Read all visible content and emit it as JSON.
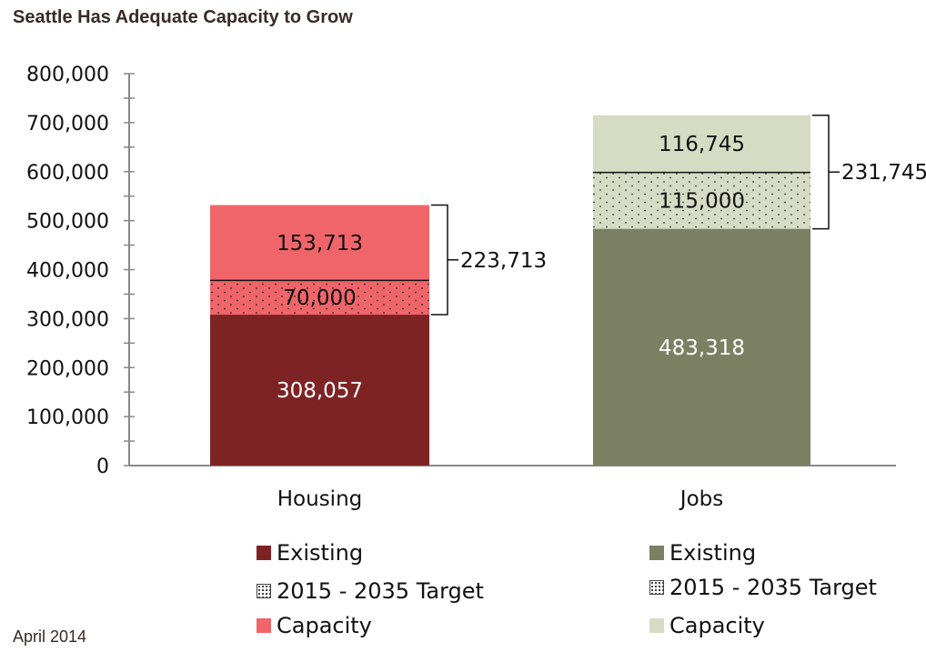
{
  "header": {
    "title": "Seattle Has Adequate Capacity to Grow"
  },
  "footer": {
    "date": "April 2014"
  },
  "colors": {
    "housing_existing": "#7e2324",
    "housing_capacity": "#f0656a",
    "jobs_existing": "#7b8063",
    "jobs_capacity": "#d6dcc4",
    "axis": "#888888"
  },
  "chart_data": {
    "type": "bar",
    "stacked": true,
    "categories": [
      "Housing",
      "Jobs"
    ],
    "ylim": [
      0,
      800000
    ],
    "yticks": [
      "0",
      "100,000",
      "200,000",
      "300,000",
      "400,000",
      "500,000",
      "600,000",
      "700,000",
      "800,000"
    ],
    "grid": false,
    "bars": [
      {
        "category": "Housing",
        "segments": [
          {
            "name": "Existing",
            "value": 308057,
            "label": "308,057"
          },
          {
            "name": "2015 - 2035 Target",
            "value": 70000,
            "label": "70,000"
          },
          {
            "name": "Capacity",
            "value": 153713,
            "label": "153,713"
          }
        ],
        "bracket_label": "223,713"
      },
      {
        "category": "Jobs",
        "segments": [
          {
            "name": "Existing",
            "value": 483318,
            "label": "483,318"
          },
          {
            "name": "2015 - 2035 Target",
            "value": 115000,
            "label": "115,000"
          },
          {
            "name": "Capacity",
            "value": 116745,
            "label": "116,745"
          }
        ],
        "bracket_label": "231,745"
      }
    ],
    "legend": {
      "housing": [
        "Existing",
        "2015 - 2035 Target",
        "Capacity"
      ],
      "jobs": [
        "Existing",
        "2015 - 2035 Target",
        "Capacity"
      ]
    }
  }
}
